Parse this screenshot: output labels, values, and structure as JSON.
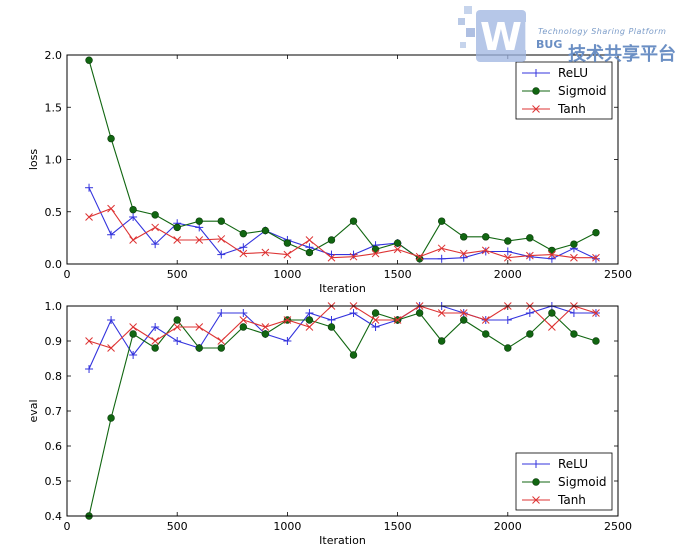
{
  "watermark": {
    "logo_text": "WB",
    "bug_text": "BUG",
    "tagline": "Technology Sharing Platform",
    "cn_text": "技术共享平台"
  },
  "colors": {
    "ReLU": "#3333dd",
    "Sigmoid": "#116611",
    "Tanh": "#dd3333"
  },
  "chart_data": [
    {
      "type": "line",
      "title": "",
      "xlabel": "Iteration",
      "ylabel": "loss",
      "xlim": [
        0,
        2500
      ],
      "ylim": [
        0.0,
        2.0
      ],
      "xticks": [
        "0",
        "500",
        "1000",
        "1500",
        "2000",
        "2500"
      ],
      "yticks": [
        "0.0",
        "0.5",
        "1.0",
        "1.5",
        "2.0"
      ],
      "legend_position": "top-right",
      "x": [
        100,
        200,
        300,
        400,
        500,
        600,
        700,
        800,
        900,
        1000,
        1100,
        1200,
        1300,
        1400,
        1500,
        1600,
        1700,
        1800,
        1900,
        2000,
        2100,
        2200,
        2300,
        2400
      ],
      "series": [
        {
          "name": "ReLU",
          "marker": "plus",
          "values": [
            0.73,
            0.28,
            0.45,
            0.19,
            0.39,
            0.35,
            0.09,
            0.16,
            0.32,
            0.23,
            0.16,
            0.09,
            0.09,
            0.18,
            0.2,
            0.05,
            0.05,
            0.06,
            0.12,
            0.12,
            0.07,
            0.05,
            0.15,
            0.05
          ]
        },
        {
          "name": "Sigmoid",
          "marker": "circle",
          "values": [
            1.95,
            1.2,
            0.52,
            0.47,
            0.35,
            0.41,
            0.41,
            0.29,
            0.32,
            0.2,
            0.11,
            0.23,
            0.41,
            0.14,
            0.2,
            0.05,
            0.41,
            0.26,
            0.26,
            0.22,
            0.25,
            0.13,
            0.19,
            0.3
          ]
        },
        {
          "name": "Tanh",
          "marker": "x",
          "values": [
            0.45,
            0.53,
            0.23,
            0.35,
            0.23,
            0.23,
            0.24,
            0.1,
            0.11,
            0.09,
            0.23,
            0.06,
            0.07,
            0.1,
            0.14,
            0.07,
            0.15,
            0.1,
            0.13,
            0.06,
            0.08,
            0.09,
            0.06,
            0.06
          ]
        }
      ]
    },
    {
      "type": "line",
      "title": "",
      "xlabel": "Iteration",
      "ylabel": "eval",
      "xlim": [
        0,
        2500
      ],
      "ylim": [
        0.4,
        1.0
      ],
      "xticks": [
        "0",
        "500",
        "1000",
        "1500",
        "2000",
        "2500"
      ],
      "yticks": [
        "0.4",
        "0.5",
        "0.6",
        "0.7",
        "0.8",
        "0.9",
        "1.0"
      ],
      "legend_position": "bottom-right",
      "x": [
        100,
        200,
        300,
        400,
        500,
        600,
        700,
        800,
        900,
        1000,
        1100,
        1200,
        1300,
        1400,
        1500,
        1600,
        1700,
        1800,
        1900,
        2000,
        2100,
        2200,
        2300,
        2400
      ],
      "series": [
        {
          "name": "ReLU",
          "marker": "plus",
          "values": [
            0.82,
            0.96,
            0.86,
            0.94,
            0.9,
            0.88,
            0.98,
            0.98,
            0.92,
            0.9,
            0.98,
            0.96,
            0.98,
            0.94,
            0.96,
            1.0,
            1.0,
            0.98,
            0.96,
            0.96,
            0.98,
            1.0,
            0.98,
            0.98
          ]
        },
        {
          "name": "Sigmoid",
          "marker": "circle",
          "values": [
            0.4,
            0.68,
            0.92,
            0.88,
            0.96,
            0.88,
            0.88,
            0.94,
            0.92,
            0.96,
            0.96,
            0.94,
            0.86,
            0.98,
            0.96,
            0.98,
            0.9,
            0.96,
            0.92,
            0.88,
            0.92,
            0.98,
            0.92,
            0.9
          ]
        },
        {
          "name": "Tanh",
          "marker": "x",
          "values": [
            0.9,
            0.88,
            0.94,
            0.9,
            0.94,
            0.94,
            0.9,
            0.96,
            0.94,
            0.96,
            0.94,
            1.0,
            1.0,
            0.96,
            0.96,
            1.0,
            0.98,
            0.98,
            0.96,
            1.0,
            1.0,
            0.94,
            1.0,
            0.98
          ]
        }
      ]
    }
  ]
}
